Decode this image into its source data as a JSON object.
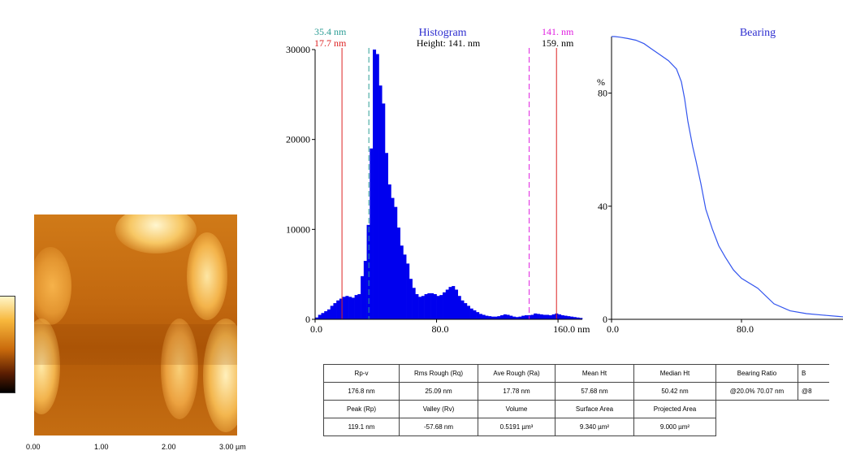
{
  "afm": {
    "x_ticks": [
      "0.00",
      "1.00",
      "2.00",
      "3.00 µm"
    ]
  },
  "histogram": {
    "title": "Histogram",
    "height_text": "Height: 141. nm",
    "left_cursor_1": "35.4 nm",
    "left_cursor_2": "17.7 nm",
    "right_cursor_1": "141. nm",
    "right_cursor_2": "159. nm",
    "x_ticks": [
      "0.0",
      "80.0",
      "160.0 nm"
    ],
    "y_ticks": [
      "0",
      "10000",
      "20000",
      "30000"
    ],
    "colors": {
      "bar": "#0000ee",
      "cursor_teal": "#2e9e96",
      "cursor_red": "#dd2222",
      "cursor_magenta": "#e020e0"
    }
  },
  "bearing": {
    "title": "Bearing",
    "y_unit": "%",
    "x_ticks": [
      "0.0",
      "80.0"
    ],
    "y_ticks": [
      "0",
      "40",
      "80"
    ],
    "color": "#3355ee"
  },
  "table": {
    "row1": [
      "Rp-v",
      "Rms Rough (Rq)",
      "Ave Rough (Ra)",
      "Mean Ht",
      "Median Ht",
      "Bearing Ratio",
      "B"
    ],
    "row2": [
      "176.8 nm",
      "25.09 nm",
      "17.78 nm",
      "57.68 nm",
      "50.42 nm",
      "@20.0% 70.07 nm",
      "@8"
    ],
    "row3": [
      "Peak (Rp)",
      "Valley (Rv)",
      "Volume",
      "Surface Area",
      "Projected Area"
    ],
    "row4": [
      "119.1 nm",
      "-57.68 nm",
      "0.5191 µm³",
      "9.340 µm²",
      "9.000 µm²"
    ]
  },
  "chart_data": [
    {
      "type": "bar",
      "title": "Histogram",
      "xlabel": "nm",
      "ylabel": "",
      "xlim": [
        0,
        176
      ],
      "ylim": [
        0,
        30000
      ],
      "bin_width": 2,
      "x": [
        0,
        2,
        4,
        6,
        8,
        10,
        12,
        14,
        16,
        18,
        20,
        22,
        24,
        26,
        28,
        30,
        32,
        34,
        36,
        38,
        40,
        42,
        44,
        46,
        48,
        50,
        52,
        54,
        56,
        58,
        60,
        62,
        64,
        66,
        68,
        70,
        72,
        74,
        76,
        78,
        80,
        82,
        84,
        86,
        88,
        90,
        92,
        94,
        96,
        98,
        100,
        102,
        104,
        106,
        108,
        110,
        112,
        114,
        116,
        118,
        120,
        122,
        124,
        126,
        128,
        130,
        132,
        134,
        136,
        138,
        140,
        142,
        144,
        146,
        148,
        150,
        152,
        154,
        156,
        158,
        160,
        162,
        164,
        166,
        168,
        170,
        172,
        174
      ],
      "values": [
        200,
        500,
        700,
        900,
        1100,
        1500,
        1800,
        2100,
        2300,
        2500,
        2600,
        2500,
        2400,
        2700,
        2800,
        4800,
        6500,
        10500,
        19000,
        30000,
        29500,
        26000,
        24000,
        18500,
        15000,
        13500,
        12500,
        10200,
        8200,
        7200,
        6200,
        4500,
        3500,
        2800,
        2500,
        2600,
        2800,
        2900,
        2900,
        2800,
        2600,
        2700,
        3000,
        3300,
        3600,
        3700,
        3300,
        2600,
        2100,
        1800,
        1500,
        1200,
        1000,
        800,
        600,
        500,
        400,
        350,
        300,
        300,
        350,
        450,
        550,
        500,
        400,
        300,
        250,
        300,
        400,
        450,
        450,
        500,
        650,
        600,
        550,
        500,
        500,
        450,
        550,
        650,
        550,
        450,
        400,
        350,
        300,
        250,
        200,
        150
      ],
      "cursors": [
        17.7,
        35.4,
        141,
        159
      ]
    },
    {
      "type": "line",
      "title": "Bearing",
      "xlabel": "",
      "ylabel": "%",
      "xlim": [
        0,
        160
      ],
      "ylim": [
        0,
        100
      ],
      "series": [
        {
          "x": [
            0,
            2,
            5,
            10,
            15,
            20,
            25,
            30,
            35,
            40,
            43,
            45,
            47,
            50,
            52,
            55,
            58,
            62,
            66,
            70,
            75,
            80,
            90,
            100,
            110,
            120,
            130,
            140,
            150,
            156
          ],
          "values": [
            100,
            100,
            99.8,
            99.3,
            98.7,
            97.5,
            95.5,
            93.5,
            91.5,
            88.5,
            84,
            78,
            70,
            61,
            56,
            48,
            39,
            32,
            26,
            22,
            17.5,
            14.5,
            11,
            5.5,
            3,
            2,
            1.5,
            1,
            0.5,
            0.5
          ]
        }
      ]
    }
  ]
}
